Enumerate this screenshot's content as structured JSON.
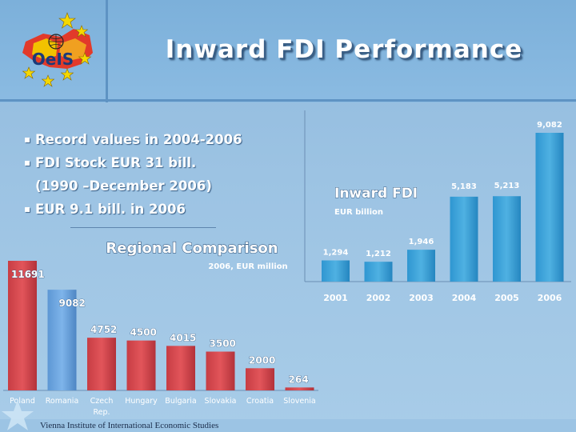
{
  "title": "Inward FDI Performance",
  "logo_text": "OeIS",
  "bullets": [
    "Record values in 2004-2006",
    "FDI Stock EUR 31 bill.",
    "(1990 –December 2006)",
    "EUR 9.1 bill. in 2006"
  ],
  "footer": "Vienna Institute of International Economic Studies",
  "colors": {
    "red_bar": "#e2555a",
    "blue_bar": "#4fb1e2",
    "highlight_bar": "#7eb4ea",
    "title_shadow": "#3a5f86"
  },
  "chart_data": [
    {
      "type": "bar",
      "title": "Regional Comparison",
      "subtitle": "2006, EUR million",
      "categories": [
        "Poland",
        "Romania",
        "Czech Rep.",
        "Hungary",
        "Bulgaria",
        "Slovakia",
        "Croatia",
        "Slovenia"
      ],
      "values": [
        11691,
        9082,
        4752,
        4500,
        4015,
        3500,
        2000,
        264
      ],
      "value_labels": [
        "11691",
        "9082",
        "4752",
        "4500",
        "4015",
        "3500",
        "2000",
        "264"
      ],
      "highlight_category": "Romania",
      "ylim": [
        0,
        11691
      ],
      "grid": false
    },
    {
      "type": "bar",
      "title": "Inward FDI",
      "subtitle": "EUR billion",
      "categories": [
        "2001",
        "2002",
        "2003",
        "2004",
        "2005",
        "2006"
      ],
      "values": [
        1.294,
        1.212,
        1.946,
        5.183,
        5.213,
        9.082
      ],
      "value_labels": [
        "1,294",
        "1,212",
        "1,946",
        "5,183",
        "5,213",
        "9,082"
      ],
      "ylim": [
        0,
        9.082
      ],
      "grid": false
    }
  ]
}
